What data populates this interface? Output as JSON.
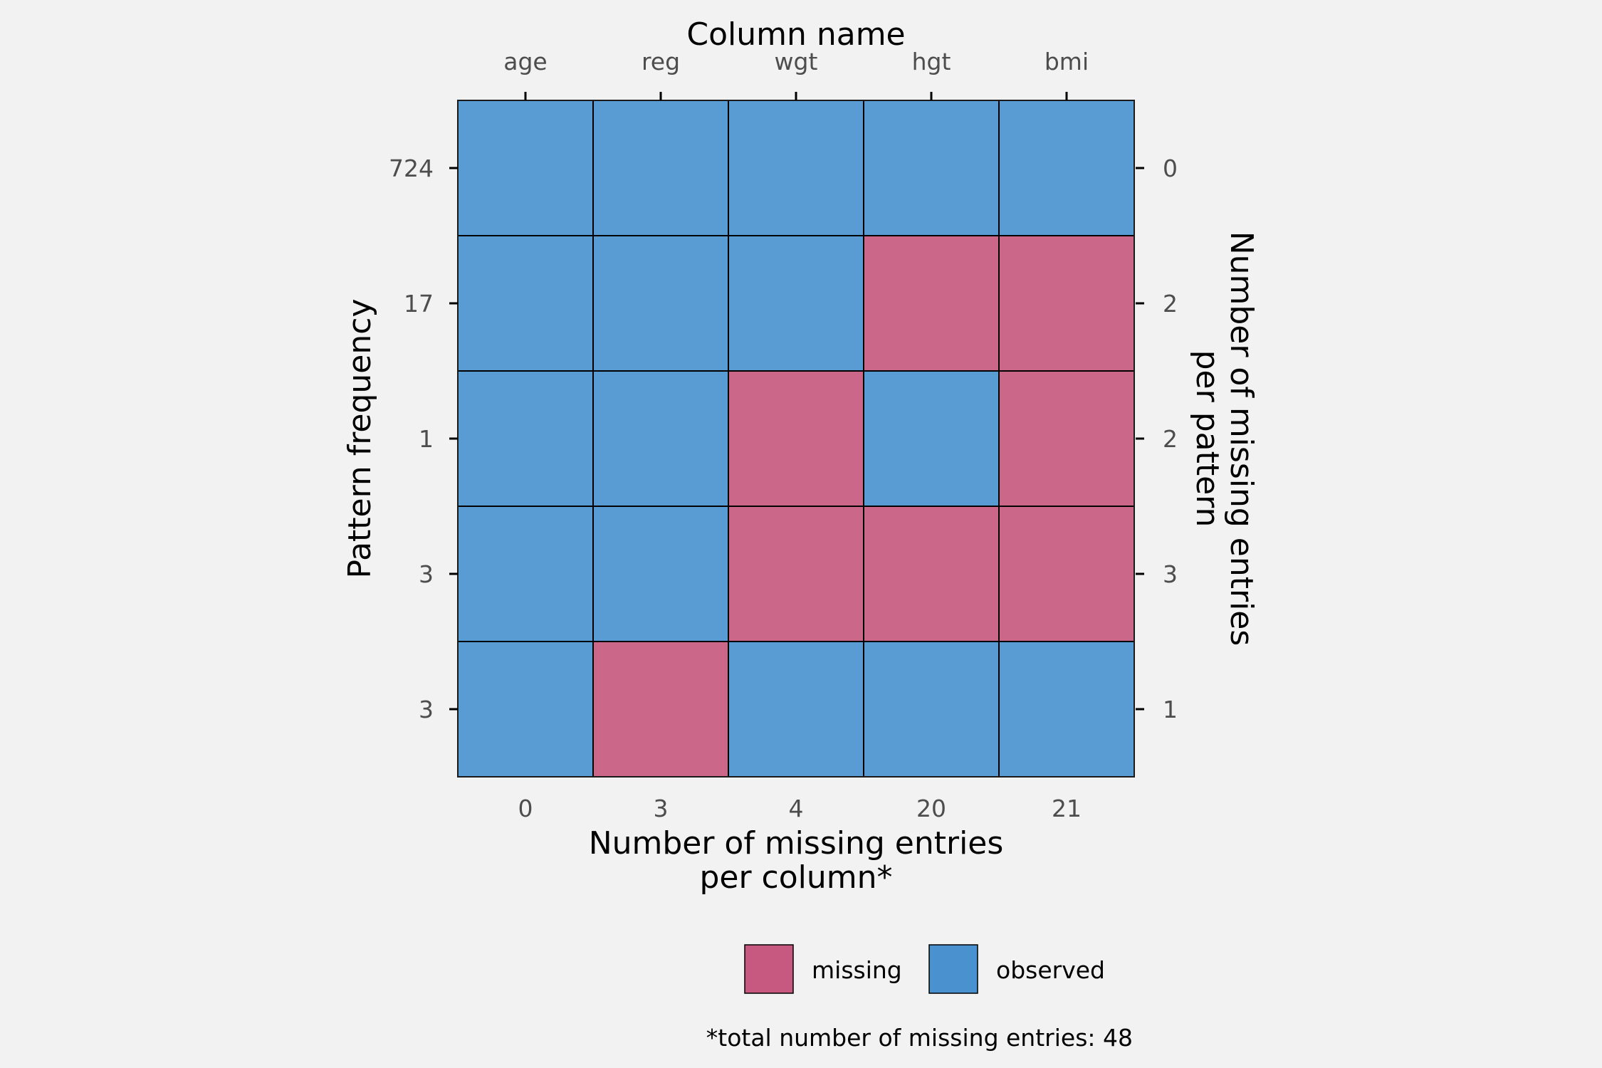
{
  "chart_data": {
    "type": "heatmap",
    "title": "",
    "top_axis_title": "Column name",
    "columns": [
      "age",
      "reg",
      "wgt",
      "hgt",
      "bmi"
    ],
    "xlabel_line1": "Number of missing entries",
    "xlabel_line2": "per column*",
    "missing_per_column": [
      "0",
      "3",
      "4",
      "20",
      "21"
    ],
    "ylabel": "Pattern frequency",
    "pattern_frequency": [
      "724",
      "17",
      "1",
      "3",
      "3"
    ],
    "right_label_line1": "Number of missing entries",
    "right_label_line2": "per pattern",
    "missing_per_pattern": [
      "0",
      "2",
      "2",
      "3",
      "1"
    ],
    "patterns": [
      [
        "observed",
        "observed",
        "observed",
        "observed",
        "observed"
      ],
      [
        "observed",
        "observed",
        "observed",
        "missing",
        "missing"
      ],
      [
        "observed",
        "observed",
        "missing",
        "observed",
        "missing"
      ],
      [
        "observed",
        "observed",
        "missing",
        "missing",
        "missing"
      ],
      [
        "observed",
        "missing",
        "observed",
        "observed",
        "observed"
      ]
    ],
    "legend": [
      {
        "key": "missing",
        "label": "missing",
        "color": "#c7587f"
      },
      {
        "key": "observed",
        "label": "observed",
        "color": "#4a92cf"
      }
    ],
    "cell_colors": {
      "missing": "#cb6789",
      "observed": "#589cd3"
    },
    "caption": "*total number of missing entries: 48"
  }
}
